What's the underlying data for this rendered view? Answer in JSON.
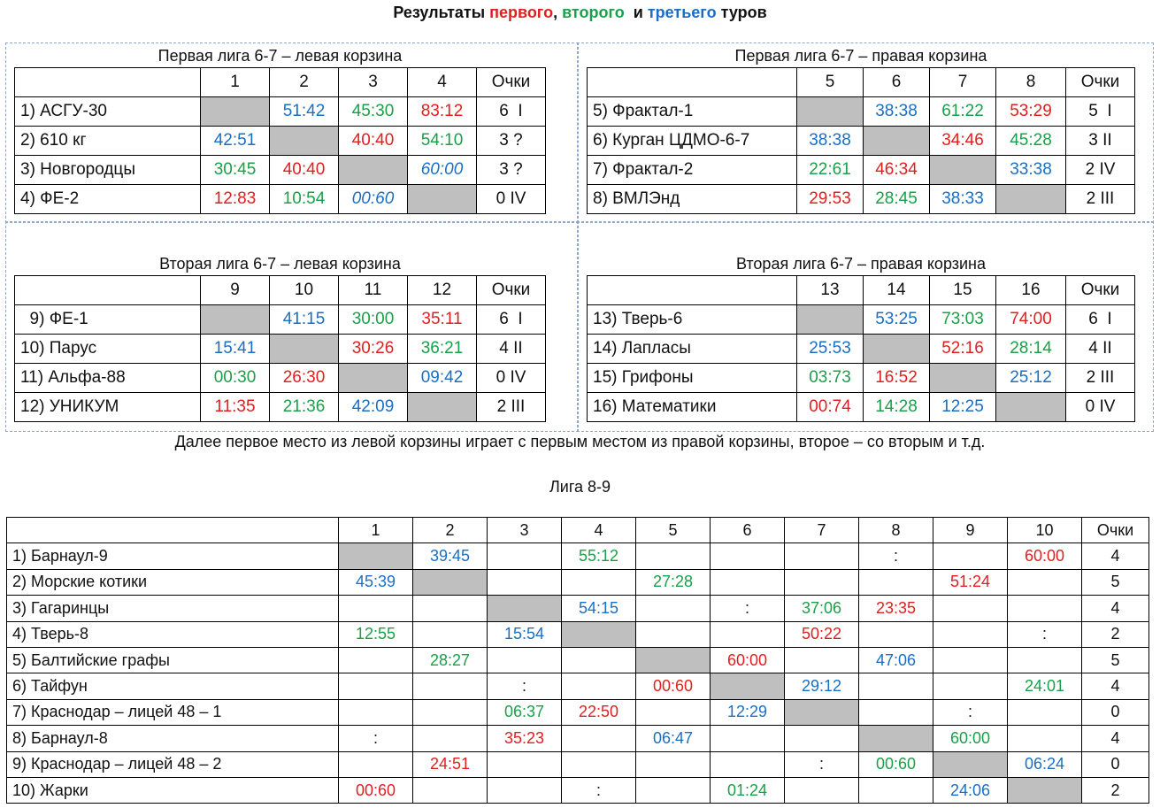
{
  "title": {
    "prefix": "Результаты ",
    "r1": "первого",
    "sep1": ", ",
    "r2": "второго",
    "sep2": "  и ",
    "r3": "третьего",
    "suffix": " туров"
  },
  "colors": {
    "round1": "#e02020",
    "round2": "#1aa04a",
    "round3": "#1a6fc4",
    "blocked_cell": "#bfbfbf"
  },
  "leagues": [
    {
      "title": "Первая лига 6-7 – левая корзина",
      "columns": [
        "1",
        "2",
        "3",
        "4",
        "Очки"
      ],
      "rows": [
        {
          "name": "1) АСГУ-30",
          "cells": [
            {
              "v": "",
              "c": "gray"
            },
            {
              "v": "51:42",
              "c": "blue"
            },
            {
              "v": "45:30",
              "c": "green"
            },
            {
              "v": "83:12",
              "c": "red"
            }
          ],
          "points": "6  I"
        },
        {
          "name": "2) 610 кг",
          "cells": [
            {
              "v": "42:51",
              "c": "blue"
            },
            {
              "v": "",
              "c": "gray"
            },
            {
              "v": "40:40",
              "c": "red"
            },
            {
              "v": "54:10",
              "c": "green"
            }
          ],
          "points": "3 ?"
        },
        {
          "name": "3) Новгородцы",
          "cells": [
            {
              "v": "30:45",
              "c": "green"
            },
            {
              "v": "40:40",
              "c": "red"
            },
            {
              "v": "",
              "c": "gray"
            },
            {
              "v": "60:00",
              "c": "blue ital"
            }
          ],
          "points": "3 ?"
        },
        {
          "name": "4) ФЕ-2",
          "cells": [
            {
              "v": "12:83",
              "c": "red"
            },
            {
              "v": "10:54",
              "c": "green"
            },
            {
              "v": "00:60",
              "c": "blue ital"
            },
            {
              "v": "",
              "c": "gray"
            }
          ],
          "points": "0 IV"
        }
      ]
    },
    {
      "title": "Первая лига 6-7 – правая корзина",
      "columns": [
        "5",
        "6",
        "7",
        "8",
        "Очки"
      ],
      "rows": [
        {
          "name": "5) Фрактал-1",
          "cells": [
            {
              "v": "",
              "c": "gray"
            },
            {
              "v": "38:38",
              "c": "blue"
            },
            {
              "v": "61:22",
              "c": "green"
            },
            {
              "v": "53:29",
              "c": "red"
            }
          ],
          "points": "5  I"
        },
        {
          "name": "6) Курган ЦДМО-6-7",
          "cells": [
            {
              "v": "38:38",
              "c": "blue"
            },
            {
              "v": "",
              "c": "gray"
            },
            {
              "v": "34:46",
              "c": "red"
            },
            {
              "v": "45:28",
              "c": "green"
            }
          ],
          "points": "3 II"
        },
        {
          "name": "7) Фрактал-2",
          "cells": [
            {
              "v": "22:61",
              "c": "green"
            },
            {
              "v": "46:34",
              "c": "red"
            },
            {
              "v": "",
              "c": "gray"
            },
            {
              "v": "33:38",
              "c": "blue"
            }
          ],
          "points": "2 IV"
        },
        {
          "name": "8) ВМЛЭнд",
          "cells": [
            {
              "v": "29:53",
              "c": "red"
            },
            {
              "v": "28:45",
              "c": "green"
            },
            {
              "v": "38:33",
              "c": "blue"
            },
            {
              "v": "",
              "c": "gray"
            }
          ],
          "points": "2 III"
        }
      ]
    },
    {
      "title": "Вторая лига 6-7 – левая корзина",
      "columns": [
        "9",
        "10",
        "11",
        "12",
        "Очки"
      ],
      "rows": [
        {
          "name": "  9) ФЕ-1",
          "cells": [
            {
              "v": "",
              "c": "gray"
            },
            {
              "v": "41:15",
              "c": "blue"
            },
            {
              "v": "30:00",
              "c": "green"
            },
            {
              "v": "35:11",
              "c": "red"
            }
          ],
          "points": "6  I"
        },
        {
          "name": "10) Парус",
          "cells": [
            {
              "v": "15:41",
              "c": "blue"
            },
            {
              "v": "",
              "c": "gray"
            },
            {
              "v": "30:26",
              "c": "red"
            },
            {
              "v": "36:21",
              "c": "green"
            }
          ],
          "points": "4 II"
        },
        {
          "name": "11) Альфа-88",
          "cells": [
            {
              "v": "00:30",
              "c": "green"
            },
            {
              "v": "26:30",
              "c": "red"
            },
            {
              "v": "",
              "c": "gray"
            },
            {
              "v": "09:42",
              "c": "blue"
            }
          ],
          "points": "0 IV"
        },
        {
          "name": "12) УНИКУМ",
          "cells": [
            {
              "v": "11:35",
              "c": "red"
            },
            {
              "v": "21:36",
              "c": "green"
            },
            {
              "v": "42:09",
              "c": "blue"
            },
            {
              "v": "",
              "c": "gray"
            }
          ],
          "points": "2 III"
        }
      ]
    },
    {
      "title": "Вторая лига 6-7 – правая корзина",
      "columns": [
        "13",
        "14",
        "15",
        "16",
        "Очки"
      ],
      "rows": [
        {
          "name": "13) Тверь-6",
          "cells": [
            {
              "v": "",
              "c": "gray"
            },
            {
              "v": "53:25",
              "c": "blue"
            },
            {
              "v": "73:03",
              "c": "green"
            },
            {
              "v": "74:00",
              "c": "red"
            }
          ],
          "points": "6  I"
        },
        {
          "name": "14) Лапласы",
          "cells": [
            {
              "v": "25:53",
              "c": "blue"
            },
            {
              "v": "",
              "c": "gray"
            },
            {
              "v": "52:16",
              "c": "red"
            },
            {
              "v": "28:14",
              "c": "green"
            }
          ],
          "points": "4 II"
        },
        {
          "name": "15) Грифоны",
          "cells": [
            {
              "v": "03:73",
              "c": "green"
            },
            {
              "v": "16:52",
              "c": "red"
            },
            {
              "v": "",
              "c": "gray"
            },
            {
              "v": "25:12",
              "c": "blue"
            }
          ],
          "points": "2 III"
        },
        {
          "name": "16) Математики",
          "cells": [
            {
              "v": "00:74",
              "c": "red"
            },
            {
              "v": "14:28",
              "c": "green"
            },
            {
              "v": "12:25",
              "c": "blue"
            },
            {
              "v": "",
              "c": "gray"
            }
          ],
          "points": "0 IV"
        }
      ]
    }
  ],
  "note": "Далее первое место из левой корзины играет с первым местом из правой корзины, второе – со вторым и т.д.",
  "league89": {
    "title": "Лига 8-9",
    "columns": [
      "1",
      "2",
      "3",
      "4",
      "5",
      "6",
      "7",
      "8",
      "9",
      "10",
      "Очки"
    ],
    "rows": [
      {
        "name": "1) Барнаул-9",
        "cells": [
          {
            "v": "",
            "c": "gray"
          },
          {
            "v": "39:45",
            "c": "blue"
          },
          {
            "v": "",
            "c": ""
          },
          {
            "v": "55:12",
            "c": "green"
          },
          {
            "v": "",
            "c": ""
          },
          {
            "v": "",
            "c": ""
          },
          {
            "v": "",
            "c": ""
          },
          {
            "v": ":",
            "c": ""
          },
          {
            "v": "",
            "c": ""
          },
          {
            "v": "60:00",
            "c": "red"
          }
        ],
        "points": "4"
      },
      {
        "name": "2) Морские котики",
        "cells": [
          {
            "v": "45:39",
            "c": "blue"
          },
          {
            "v": "",
            "c": "gray"
          },
          {
            "v": "",
            "c": ""
          },
          {
            "v": "",
            "c": ""
          },
          {
            "v": "27:28",
            "c": "green"
          },
          {
            "v": "",
            "c": ""
          },
          {
            "v": "",
            "c": ""
          },
          {
            "v": "",
            "c": ""
          },
          {
            "v": "51:24",
            "c": "red"
          },
          {
            "v": "",
            "c": ""
          }
        ],
        "points": "5"
      },
      {
        "name": "3) Гагаринцы",
        "cells": [
          {
            "v": "",
            "c": ""
          },
          {
            "v": "",
            "c": ""
          },
          {
            "v": "",
            "c": "gray"
          },
          {
            "v": "54:15",
            "c": "blue"
          },
          {
            "v": "",
            "c": ""
          },
          {
            "v": ":",
            "c": ""
          },
          {
            "v": "37:06",
            "c": "green"
          },
          {
            "v": "23:35",
            "c": "red"
          },
          {
            "v": "",
            "c": ""
          },
          {
            "v": "",
            "c": ""
          }
        ],
        "points": "4"
      },
      {
        "name": "4) Тверь-8",
        "cells": [
          {
            "v": "12:55",
            "c": "green"
          },
          {
            "v": "",
            "c": ""
          },
          {
            "v": "15:54",
            "c": "blue"
          },
          {
            "v": "",
            "c": "gray"
          },
          {
            "v": "",
            "c": ""
          },
          {
            "v": "",
            "c": ""
          },
          {
            "v": "50:22",
            "c": "red"
          },
          {
            "v": "",
            "c": ""
          },
          {
            "v": "",
            "c": ""
          },
          {
            "v": ":",
            "c": ""
          }
        ],
        "points": "2"
      },
      {
        "name": "5) Балтийские графы",
        "cells": [
          {
            "v": "",
            "c": ""
          },
          {
            "v": "28:27",
            "c": "green"
          },
          {
            "v": "",
            "c": ""
          },
          {
            "v": "",
            "c": ""
          },
          {
            "v": "",
            "c": "gray"
          },
          {
            "v": "60:00",
            "c": "red"
          },
          {
            "v": "",
            "c": ""
          },
          {
            "v": "47:06",
            "c": "blue"
          },
          {
            "v": "",
            "c": ""
          },
          {
            "v": "",
            "c": ""
          }
        ],
        "points": "5"
      },
      {
        "name": "6) Тайфун",
        "cells": [
          {
            "v": "",
            "c": ""
          },
          {
            "v": "",
            "c": ""
          },
          {
            "v": ":",
            "c": ""
          },
          {
            "v": "",
            "c": ""
          },
          {
            "v": "00:60",
            "c": "red"
          },
          {
            "v": "",
            "c": "gray"
          },
          {
            "v": "29:12",
            "c": "blue"
          },
          {
            "v": "",
            "c": ""
          },
          {
            "v": "",
            "c": ""
          },
          {
            "v": "24:01",
            "c": "green"
          }
        ],
        "points": "4"
      },
      {
        "name": "7) Краснодар – лицей 48 – 1",
        "cells": [
          {
            "v": "",
            "c": ""
          },
          {
            "v": "",
            "c": ""
          },
          {
            "v": "06:37",
            "c": "green"
          },
          {
            "v": "22:50",
            "c": "red"
          },
          {
            "v": "",
            "c": ""
          },
          {
            "v": "12:29",
            "c": "blue"
          },
          {
            "v": "",
            "c": "gray"
          },
          {
            "v": "",
            "c": ""
          },
          {
            "v": ":",
            "c": ""
          },
          {
            "v": "",
            "c": ""
          }
        ],
        "points": "0"
      },
      {
        "name": "8) Барнаул-8",
        "cells": [
          {
            "v": ":",
            "c": ""
          },
          {
            "v": "",
            "c": ""
          },
          {
            "v": "35:23",
            "c": "red"
          },
          {
            "v": "",
            "c": ""
          },
          {
            "v": "06:47",
            "c": "blue"
          },
          {
            "v": "",
            "c": ""
          },
          {
            "v": "",
            "c": ""
          },
          {
            "v": "",
            "c": "gray"
          },
          {
            "v": "60:00",
            "c": "green"
          },
          {
            "v": "",
            "c": ""
          }
        ],
        "points": "4"
      },
      {
        "name": "9) Краснодар – лицей 48 – 2",
        "cells": [
          {
            "v": "",
            "c": ""
          },
          {
            "v": "24:51",
            "c": "red"
          },
          {
            "v": "",
            "c": ""
          },
          {
            "v": "",
            "c": ""
          },
          {
            "v": "",
            "c": ""
          },
          {
            "v": "",
            "c": ""
          },
          {
            "v": ":",
            "c": ""
          },
          {
            "v": "00:60",
            "c": "green"
          },
          {
            "v": "",
            "c": "gray"
          },
          {
            "v": "06:24",
            "c": "blue"
          }
        ],
        "points": "0"
      },
      {
        "name": "10) Жарки",
        "cells": [
          {
            "v": "00:60",
            "c": "red"
          },
          {
            "v": "",
            "c": ""
          },
          {
            "v": "",
            "c": ""
          },
          {
            "v": ":",
            "c": ""
          },
          {
            "v": "",
            "c": ""
          },
          {
            "v": "01:24",
            "c": "green"
          },
          {
            "v": "",
            "c": ""
          },
          {
            "v": "",
            "c": ""
          },
          {
            "v": "24:06",
            "c": "blue"
          },
          {
            "v": "",
            "c": "gray"
          }
        ],
        "points": "2"
      }
    ]
  }
}
